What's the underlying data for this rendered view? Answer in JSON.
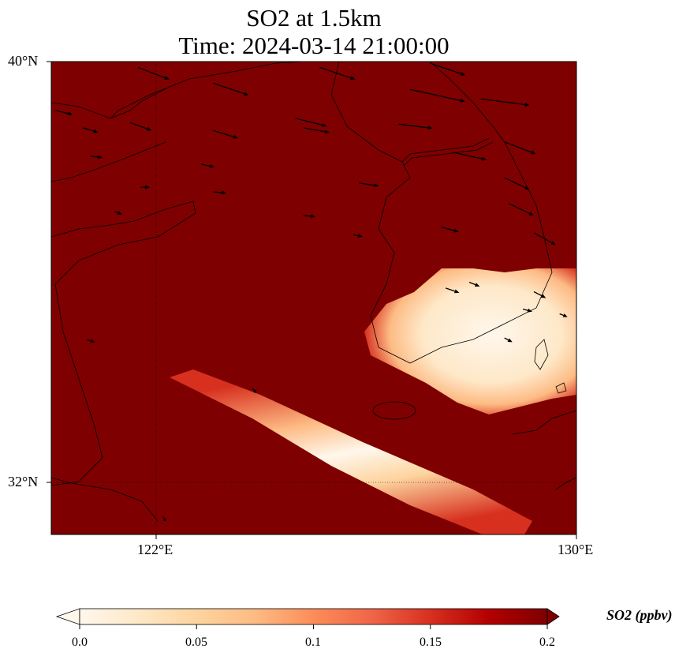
{
  "title": {
    "line1": "SO2 at 1.5km",
    "line2": "Time: 2024-03-14 21:00:00"
  },
  "map": {
    "extent": {
      "lon": [
        120,
        130
      ],
      "lat": [
        31,
        40
      ]
    },
    "background_color": "#7f0000",
    "lat_ticks": [
      {
        "value": 40,
        "label": "40°N"
      },
      {
        "value": 32,
        "label": "32°N"
      }
    ],
    "lon_ticks": [
      {
        "value": 122,
        "label": "122°E"
      },
      {
        "value": 130,
        "label": "130°E"
      }
    ],
    "wind_vectors": [
      [
        121.65,
        39.89,
        0.6,
        -0.23
      ],
      [
        123.08,
        39.59,
        0.68,
        -0.23
      ],
      [
        125.11,
        39.89,
        0.68,
        -0.23
      ],
      [
        127.21,
        39.97,
        0.68,
        -0.23
      ],
      [
        126.83,
        39.47,
        1.05,
        -0.23
      ],
      [
        128.18,
        39.29,
        0.93,
        -0.12
      ],
      [
        120.08,
        39.07,
        0.33,
        -0.08
      ],
      [
        120.6,
        38.74,
        0.3,
        -0.09
      ],
      [
        121.5,
        38.84,
        0.41,
        -0.15
      ],
      [
        123.08,
        38.69,
        0.48,
        -0.15
      ],
      [
        124.65,
        38.92,
        0.6,
        -0.15
      ],
      [
        124.8,
        38.74,
        0.5,
        -0.09
      ],
      [
        126.61,
        38.81,
        0.65,
        -0.08
      ],
      [
        127.66,
        38.27,
        0.63,
        -0.14
      ],
      [
        128.63,
        38.47,
        0.6,
        -0.23
      ],
      [
        120.75,
        38.2,
        0.23,
        -0.03
      ],
      [
        122.85,
        38.05,
        0.26,
        -0.06
      ],
      [
        121.7,
        37.61,
        0.18,
        0
      ],
      [
        123.08,
        37.52,
        0.26,
        -0.02
      ],
      [
        125.86,
        37.69,
        0.38,
        -0.06
      ],
      [
        128.63,
        37.79,
        0.48,
        -0.23
      ],
      [
        128.71,
        37.3,
        0.48,
        -0.23
      ],
      [
        124.8,
        37.07,
        0.23,
        -0.02
      ],
      [
        121.2,
        37.15,
        0.15,
        -0.06
      ],
      [
        127.43,
        36.85,
        0.33,
        -0.09
      ],
      [
        129.19,
        36.74,
        0.42,
        -0.23
      ],
      [
        125.75,
        36.7,
        0.18,
        -0.03
      ],
      [
        127.51,
        35.69,
        0.26,
        -0.09
      ],
      [
        127.96,
        35.8,
        0.2,
        -0.08
      ],
      [
        129.19,
        35.62,
        0.23,
        -0.12
      ],
      [
        128.98,
        35.29,
        0.18,
        -0.05
      ],
      [
        120.68,
        34.71,
        0.15,
        -0.05
      ],
      [
        123.83,
        33.78,
        0.08,
        -0.09
      ],
      [
        129.68,
        35.2,
        0.15,
        -0.06
      ],
      [
        128.63,
        34.74,
        0.15,
        -0.08
      ],
      [
        122.13,
        31.34,
        0.05,
        -0.09
      ]
    ]
  },
  "colorbar": {
    "label": "SO2 (ppbv)",
    "range": [
      0,
      0.2
    ],
    "ticks": [
      {
        "value": 0,
        "label": "0.0"
      },
      {
        "value": 0.05,
        "label": "0.05"
      },
      {
        "value": 0.1,
        "label": "0.1"
      },
      {
        "value": 0.15,
        "label": "0.15"
      },
      {
        "value": 0.2,
        "label": "0.2"
      }
    ],
    "colors": [
      "#fff7ec",
      "#fee8c8",
      "#fdd49e",
      "#fdbb84",
      "#fc8d59",
      "#ef6548",
      "#d7301f",
      "#b30000",
      "#7f0000"
    ]
  }
}
